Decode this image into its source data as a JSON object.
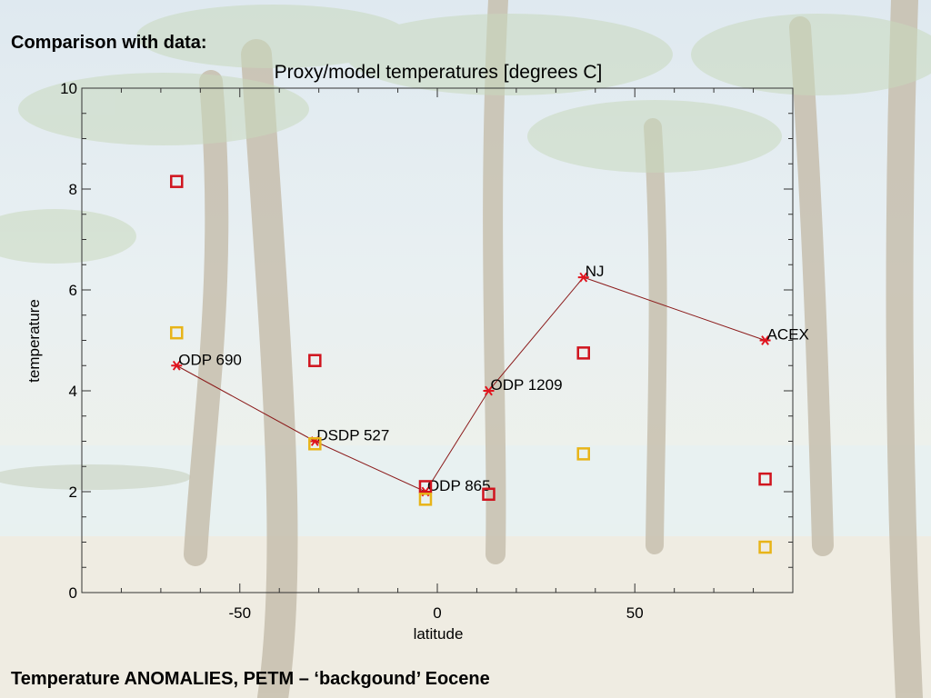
{
  "slide": {
    "title": "Comparison with data:",
    "footer": "Temperature ANOMALIES, PETM – ‘backgound’ Eocene"
  },
  "colors": {
    "model_line": "#8b1a1a",
    "model_marker": "#e0141e",
    "red_squares": "#d0141e",
    "yellow_squares": "#e8b418"
  },
  "chart_data": {
    "type": "scatter",
    "title": "Proxy/model temperatures [degrees C]",
    "xlabel": "latitude",
    "ylabel": "temperature",
    "xlim": [
      -90,
      90
    ],
    "ylim": [
      0,
      10
    ],
    "x_ticks": [
      -50,
      0,
      50
    ],
    "y_ticks": [
      0,
      2,
      4,
      6,
      8,
      10
    ],
    "grid": false,
    "legend": "none",
    "series": [
      {
        "marker": "asterisk",
        "line": true,
        "points": [
          {
            "x": -66,
            "y": 4.5,
            "label": "ODP 690"
          },
          {
            "x": -31,
            "y": 3.0,
            "label": "DSDP 527"
          },
          {
            "x": -3,
            "y": 2.0,
            "label": "ODP 865"
          },
          {
            "x": 13,
            "y": 4.0,
            "label": "ODP 1209"
          },
          {
            "x": 37,
            "y": 6.25,
            "label": "NJ"
          },
          {
            "x": 83,
            "y": 5.0,
            "label": "ACEX"
          }
        ]
      },
      {
        "marker": "square-red",
        "line": false,
        "points": [
          {
            "x": -66,
            "y": 8.15
          },
          {
            "x": -31,
            "y": 4.6
          },
          {
            "x": -3,
            "y": 2.1
          },
          {
            "x": 13,
            "y": 1.95
          },
          {
            "x": 37,
            "y": 4.75
          },
          {
            "x": 83,
            "y": 2.25
          }
        ]
      },
      {
        "marker": "square-yellow",
        "line": false,
        "points": [
          {
            "x": -66,
            "y": 5.15
          },
          {
            "x": -31,
            "y": 2.95
          },
          {
            "x": -3,
            "y": 1.85
          },
          {
            "x": 37,
            "y": 2.75
          },
          {
            "x": 83,
            "y": 0.9
          }
        ]
      }
    ]
  }
}
